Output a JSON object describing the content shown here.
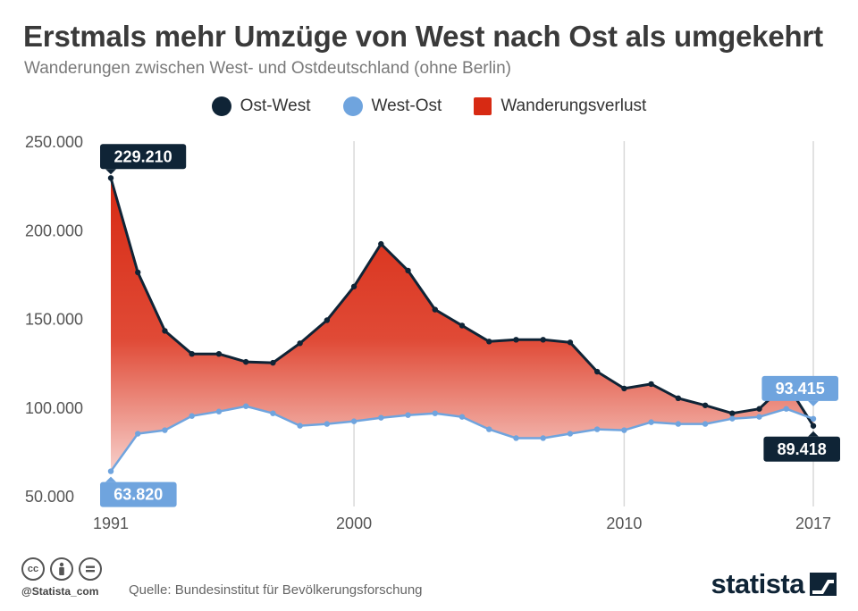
{
  "header": {
    "title": "Erstmals mehr Umzüge von West nach Ost als umgekehrt",
    "subtitle": "Wanderungen zwischen West- und Ostdeutschland (ohne Berlin)"
  },
  "legend": [
    {
      "label": "Ost-West",
      "color": "#0f2436",
      "shape": "circle"
    },
    {
      "label": "West-Ost",
      "color": "#6fa4de",
      "shape": "circle"
    },
    {
      "label": "Wanderungsverlust",
      "color": "#d72a13",
      "shape": "square"
    }
  ],
  "chart_data": {
    "type": "area",
    "x": [
      1991,
      1992,
      1993,
      1994,
      1995,
      1996,
      1997,
      1998,
      1999,
      2000,
      2001,
      2002,
      2003,
      2004,
      2005,
      2006,
      2007,
      2008,
      2009,
      2010,
      2011,
      2012,
      2013,
      2014,
      2015,
      2016,
      2017
    ],
    "series": [
      {
        "name": "Ost-West",
        "color": "#0f2436",
        "values": [
          229210,
          176000,
          143000,
          130000,
          130000,
          125500,
          125000,
          136000,
          149000,
          168000,
          192000,
          177000,
          155000,
          146000,
          137000,
          138000,
          138000,
          136500,
          120000,
          110500,
          113000,
          105000,
          101000,
          96500,
          99000,
          113500,
          89418
        ]
      },
      {
        "name": "West-Ost",
        "color": "#6fa4de",
        "values": [
          63820,
          85000,
          87000,
          95000,
          97500,
          100500,
          96500,
          89500,
          90500,
          92000,
          94000,
          95500,
          96500,
          94500,
          87500,
          82500,
          82500,
          85000,
          87500,
          87000,
          91500,
          90500,
          90500,
          93500,
          94500,
          99000,
          93415
        ]
      }
    ],
    "fill_between": {
      "name": "Wanderungsverlust",
      "color": "#d72a13"
    },
    "ylim": [
      50000,
      250000
    ],
    "yticks": [
      "250.000",
      "200.000",
      "150.000",
      "100.000",
      "50.000"
    ],
    "ytick_values": [
      250000,
      200000,
      150000,
      100000,
      50000
    ],
    "xticks": [
      "1991",
      "2000",
      "2010",
      "2017"
    ],
    "xtick_values": [
      1991,
      2000,
      2010,
      2017
    ],
    "annotations": [
      {
        "text": "229.210",
        "series": "Ost-West",
        "year": 1991,
        "style": "dark"
      },
      {
        "text": "63.820",
        "series": "West-Ost",
        "year": 1991,
        "style": "light"
      },
      {
        "text": "93.415",
        "series": "West-Ost",
        "year": 2017,
        "style": "light"
      },
      {
        "text": "89.418",
        "series": "Ost-West",
        "year": 2017,
        "style": "dark"
      }
    ],
    "grid": "vertical"
  },
  "footer": {
    "handle": "@Statista_com",
    "source": "Quelle: Bundesinstitut für Bevölkerungsforschung",
    "brand": "statista",
    "icons": [
      "cc-icon",
      "by-icon",
      "nd-icon"
    ]
  }
}
